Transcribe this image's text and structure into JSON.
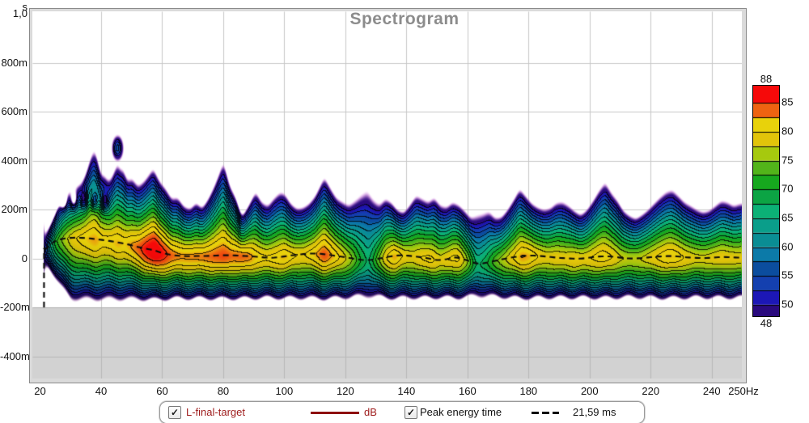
{
  "title": "Spectrogram",
  "axes": {
    "y_unit": "s",
    "y_ticks": [
      "1,0",
      "800m",
      "600m",
      "400m",
      "200m",
      "0",
      "-200m",
      "-400m"
    ],
    "x_ticks": [
      "20",
      "40",
      "60",
      "80",
      "100",
      "120",
      "140",
      "160",
      "180",
      "200",
      "220",
      "240"
    ],
    "x_end_label": "250Hz"
  },
  "colorbar": {
    "max_label": "88",
    "min_label": "48",
    "tick_labels": [
      "85",
      "80",
      "75",
      "70",
      "65",
      "60",
      "55",
      "50"
    ],
    "tick_values": [
      85,
      80,
      75,
      70,
      65,
      60,
      55,
      50
    ],
    "boundaries_db": [
      48,
      50,
      52.5,
      55,
      57.5,
      60,
      62.5,
      65,
      67.5,
      70,
      72.5,
      75,
      77.5,
      80,
      82.5,
      85,
      88
    ],
    "colors_low_to_high": [
      "#2a0a7e",
      "#1c17b6",
      "#1440af",
      "#0b4d9e",
      "#0c7aa8",
      "#0a8d94",
      "#0a9e8a",
      "#0bb176",
      "#0ca444",
      "#16a81e",
      "#52b41a",
      "#a6c90e",
      "#e2c40a",
      "#e8d20b",
      "#ee6311",
      "#f60909"
    ]
  },
  "legend": {
    "trace1": {
      "label": "L-final-target",
      "unit": "dB",
      "checked": true,
      "text_color": "#9e1b1b",
      "line_color": "#8e0d0d",
      "line_style": "solid"
    },
    "trace2": {
      "label": "Peak energy time",
      "value": "21,59 ms",
      "checked": true,
      "text_color": "#111111",
      "line_color": "#000000",
      "line_style": "dashed"
    }
  },
  "chart_data": {
    "type": "heatmap",
    "subtype": "spectrogram-contour",
    "title": "Spectrogram",
    "x_axis": {
      "label": "Hz",
      "min": 20,
      "max": 250,
      "tick_step": 20,
      "scale": "linear"
    },
    "y_axis": {
      "label": "s",
      "min_ms": -500,
      "max_ms": 1000,
      "tick_step_ms": 200
    },
    "db_range": [
      48,
      88
    ],
    "contour_interval_db": 2.5,
    "first_contour_db": 50,
    "no_data_below_ms": -200,
    "peak_energy_readout_ms": "21,59",
    "model": {
      "amplitude_db": [
        [
          20,
          40
        ],
        [
          21.5,
          52
        ],
        [
          23,
          63
        ],
        [
          25,
          71.5
        ],
        [
          27,
          75
        ],
        [
          29,
          77.5
        ],
        [
          31,
          79.5
        ],
        [
          33,
          80.5
        ],
        [
          35.5,
          81.8
        ],
        [
          38,
          82.6
        ],
        [
          40.5,
          80.8
        ],
        [
          43,
          81.2
        ],
        [
          45.5,
          82.2
        ],
        [
          47.5,
          81.2
        ],
        [
          50,
          82.8
        ],
        [
          52,
          84
        ],
        [
          54.5,
          86.6
        ],
        [
          57.5,
          88.8
        ],
        [
          60,
          86.6
        ],
        [
          62.5,
          84.2
        ],
        [
          65,
          83
        ],
        [
          67,
          82.8
        ],
        [
          70,
          83
        ],
        [
          73,
          83.2
        ],
        [
          76,
          83.8
        ],
        [
          80,
          84.8
        ],
        [
          83,
          83.6
        ],
        [
          86,
          83.9
        ],
        [
          88.5,
          83.3
        ],
        [
          91,
          81.2
        ],
        [
          94,
          80.3
        ],
        [
          97,
          81
        ],
        [
          100,
          82.2
        ],
        [
          103,
          80.2
        ],
        [
          106,
          79.7
        ],
        [
          109,
          81.2
        ],
        [
          113,
          84.7
        ],
        [
          116,
          82
        ],
        [
          119,
          79
        ],
        [
          122,
          75.5
        ],
        [
          125,
          70
        ],
        [
          127.5,
          66.5
        ],
        [
          130,
          72.5
        ],
        [
          133,
          79.5
        ],
        [
          136,
          82.7
        ],
        [
          139,
          79.6
        ],
        [
          142,
          78.6
        ],
        [
          145,
          80.2
        ],
        [
          148,
          80.8
        ],
        [
          151,
          78.6
        ],
        [
          154,
          80.2
        ],
        [
          157,
          80.8
        ],
        [
          160,
          75.5
        ],
        [
          163,
          66.5
        ],
        [
          166,
          69
        ],
        [
          169,
          74
        ],
        [
          172,
          77
        ],
        [
          175,
          80
        ],
        [
          177.5,
          82.8
        ],
        [
          180,
          82.2
        ],
        [
          183,
          80
        ],
        [
          186,
          78.8
        ],
        [
          189,
          79.5
        ],
        [
          192,
          79.1
        ],
        [
          195,
          80
        ],
        [
          198,
          79.2
        ],
        [
          201,
          80.2
        ],
        [
          204,
          81.4
        ],
        [
          207,
          80.2
        ],
        [
          210,
          77.8
        ],
        [
          213,
          77
        ],
        [
          216,
          77.2
        ],
        [
          219,
          78.6
        ],
        [
          222,
          80.2
        ],
        [
          225.5,
          81.8
        ],
        [
          228,
          81.5
        ],
        [
          231,
          79.8
        ],
        [
          234,
          78.6
        ],
        [
          237,
          78.2
        ],
        [
          240,
          78.8
        ],
        [
          243,
          79.6
        ],
        [
          246,
          79
        ],
        [
          250,
          78.9
        ]
      ],
      "decay_top_ms": [
        [
          20,
          50
        ],
        [
          22,
          95
        ],
        [
          24,
          150
        ],
        [
          26,
          208
        ],
        [
          28,
          248
        ],
        [
          30,
          266
        ],
        [
          32,
          282
        ],
        [
          33.5,
          295
        ],
        [
          35,
          335
        ],
        [
          36.2,
          385
        ],
        [
          37.5,
          422
        ],
        [
          38.6,
          398
        ],
        [
          39.6,
          330
        ],
        [
          41,
          322
        ],
        [
          42.5,
          300
        ],
        [
          44,
          332
        ],
        [
          45.2,
          372
        ],
        [
          46.2,
          342
        ],
        [
          47.2,
          348
        ],
        [
          48.4,
          302
        ],
        [
          50,
          312
        ],
        [
          52,
          282
        ],
        [
          54,
          302
        ],
        [
          57,
          352
        ],
        [
          59,
          302
        ],
        [
          61,
          272
        ],
        [
          63,
          232
        ],
        [
          65,
          236
        ],
        [
          67,
          202
        ],
        [
          69,
          192
        ],
        [
          71,
          216
        ],
        [
          73,
          196
        ],
        [
          75,
          232
        ],
        [
          77,
          282
        ],
        [
          80,
          374
        ],
        [
          82,
          282
        ],
        [
          84,
          236
        ],
        [
          86,
          162
        ],
        [
          88,
          202
        ],
        [
          90.5,
          258
        ],
        [
          92.5,
          216
        ],
        [
          94.5,
          202
        ],
        [
          96.5,
          232
        ],
        [
          98.5,
          254
        ],
        [
          100,
          250
        ],
        [
          102,
          212
        ],
        [
          104,
          192
        ],
        [
          106,
          196
        ],
        [
          108,
          212
        ],
        [
          110,
          242
        ],
        [
          113,
          316
        ],
        [
          115,
          272
        ],
        [
          117,
          232
        ],
        [
          119,
          216
        ],
        [
          121,
          202
        ],
        [
          123,
          216
        ],
        [
          125,
          232
        ],
        [
          127,
          243
        ],
        [
          129,
          216
        ],
        [
          131,
          202
        ],
        [
          133,
          229
        ],
        [
          135,
          216
        ],
        [
          137,
          187
        ],
        [
          139,
          177
        ],
        [
          141,
          206
        ],
        [
          143,
          241
        ],
        [
          145,
          229
        ],
        [
          147,
          216
        ],
        [
          149,
          233
        ],
        [
          151,
          202
        ],
        [
          153,
          196
        ],
        [
          155,
          216
        ],
        [
          157,
          206
        ],
        [
          159,
          182
        ],
        [
          161,
          152
        ],
        [
          163,
          153
        ],
        [
          165,
          161
        ],
        [
          167,
          173
        ],
        [
          169,
          152
        ],
        [
          171,
          157
        ],
        [
          173,
          187
        ],
        [
          175,
          226
        ],
        [
          177,
          269
        ],
        [
          179,
          241
        ],
        [
          181,
          212
        ],
        [
          183,
          196
        ],
        [
          185,
          187
        ],
        [
          187,
          193
        ],
        [
          189,
          213
        ],
        [
          191,
          216
        ],
        [
          193,
          202
        ],
        [
          195,
          182
        ],
        [
          197,
          167
        ],
        [
          199,
          187
        ],
        [
          201,
          222
        ],
        [
          203,
          262
        ],
        [
          205,
          293
        ],
        [
          207,
          252
        ],
        [
          209,
          222
        ],
        [
          211,
          182
        ],
        [
          213,
          163
        ],
        [
          215,
          152
        ],
        [
          217,
          167
        ],
        [
          219,
          187
        ],
        [
          221,
          212
        ],
        [
          223,
          236
        ],
        [
          225,
          256
        ],
        [
          227,
          263
        ],
        [
          229,
          241
        ],
        [
          231,
          216
        ],
        [
          233,
          202
        ],
        [
          235,
          187
        ],
        [
          237,
          177
        ],
        [
          239,
          183
        ],
        [
          241,
          202
        ],
        [
          243,
          221
        ],
        [
          245,
          216
        ],
        [
          247,
          202
        ],
        [
          250,
          213
        ]
      ],
      "peak_energy_time_ms": [
        [
          22,
          35
        ],
        [
          24,
          66
        ],
        [
          26,
          76
        ],
        [
          28,
          82
        ],
        [
          31,
          85
        ],
        [
          34,
          84
        ],
        [
          37,
          81
        ],
        [
          40,
          76
        ],
        [
          43,
          71
        ],
        [
          46,
          64
        ],
        [
          49,
          57
        ],
        [
          52,
          47
        ],
        [
          55,
          39
        ],
        [
          57.5,
          33
        ],
        [
          60,
          22
        ],
        [
          63,
          14
        ],
        [
          66,
          10
        ],
        [
          69,
          9
        ],
        [
          72,
          10
        ],
        [
          75,
          10
        ],
        [
          78,
          12
        ],
        [
          81,
          13
        ],
        [
          84,
          12
        ],
        [
          87,
          10
        ],
        [
          90,
          8
        ],
        [
          93,
          4
        ],
        [
          96,
          2
        ],
        [
          99,
          6
        ],
        [
          102,
          12
        ],
        [
          105,
          16
        ],
        [
          108,
          20
        ],
        [
          111,
          20
        ],
        [
          114,
          16
        ],
        [
          117,
          10
        ],
        [
          120,
          5
        ],
        [
          123,
          -2
        ],
        [
          126,
          -7
        ],
        [
          129,
          -6
        ],
        [
          132,
          2
        ],
        [
          135,
          9
        ],
        [
          138,
          13
        ],
        [
          141,
          11
        ],
        [
          144,
          6
        ],
        [
          147,
          1
        ],
        [
          150,
          -8
        ],
        [
          153,
          -4
        ],
        [
          156,
          6
        ],
        [
          159,
          -4
        ],
        [
          162,
          -18
        ],
        [
          164,
          -23
        ],
        [
          166,
          -18
        ],
        [
          169,
          -10
        ],
        [
          172,
          -2
        ],
        [
          175,
          5
        ],
        [
          178,
          10
        ],
        [
          181,
          12
        ],
        [
          184,
          10
        ],
        [
          187,
          6
        ],
        [
          190,
          2
        ],
        [
          193,
          0
        ],
        [
          196,
          -2
        ],
        [
          199,
          1
        ],
        [
          202,
          7
        ],
        [
          205,
          9
        ],
        [
          208,
          7
        ],
        [
          211,
          1
        ],
        [
          214,
          -1
        ],
        [
          217,
          1
        ],
        [
          220,
          5
        ],
        [
          223,
          8
        ],
        [
          226,
          10
        ],
        [
          229,
          8
        ],
        [
          232,
          4
        ],
        [
          235,
          2
        ],
        [
          238,
          1
        ],
        [
          241,
          4
        ],
        [
          244,
          6
        ],
        [
          247,
          4
        ],
        [
          250,
          3
        ]
      ],
      "peak_line_start": {
        "freq_hz": 21.3,
        "from_ms": -200
      },
      "bottom_edge": {
        "base_ms": -150,
        "wiggle_amp_ms": 8,
        "wiggle_freq": 0.85,
        "amp_coupling": 0.9,
        "edge_start_hz": 21.5,
        "edge_span_hz": 8.5
      },
      "decay_shape_exp": 1.35,
      "attack_shape_exp": 1.7,
      "holes": {
        "centers": [
          [
            27.6,
            236
          ],
          [
            31,
            238
          ],
          [
            34.4,
            240
          ],
          [
            37.8,
            238
          ],
          [
            41.2,
            234
          ]
        ],
        "sigma_f": 0.8,
        "sigma_t": 25,
        "depth_db": 13.5
      },
      "detached_blob": {
        "freq_hz": 45.3,
        "time_ms": 452,
        "sigma_f": 1.25,
        "sigma_t": 34,
        "peak_db": 56.2
      }
    }
  }
}
